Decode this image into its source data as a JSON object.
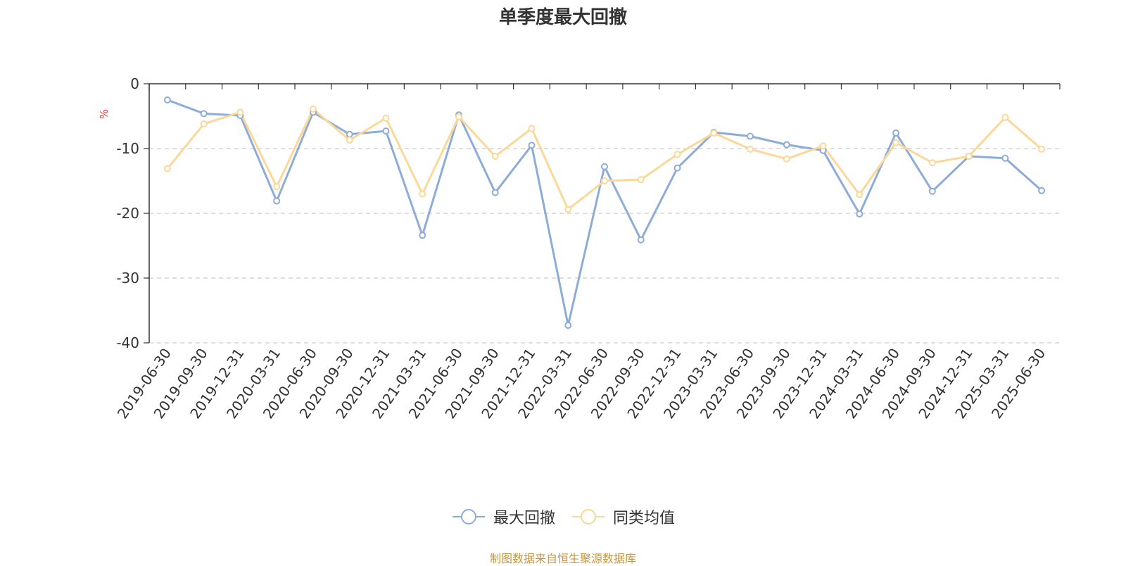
{
  "chart_data": {
    "type": "line",
    "title": "单季度最大回撤",
    "ylabel": "%",
    "ylim": [
      -40,
      0
    ],
    "yticks": [
      0,
      -10,
      -20,
      -30,
      -40
    ],
    "grid": true,
    "legend_position": "bottom",
    "categories": [
      "2019-06-30",
      "2019-09-30",
      "2019-12-31",
      "2020-03-31",
      "2020-06-30",
      "2020-09-30",
      "2020-12-31",
      "2021-03-31",
      "2021-06-30",
      "2021-09-30",
      "2021-12-31",
      "2022-03-31",
      "2022-06-30",
      "2022-09-30",
      "2022-12-31",
      "2023-03-31",
      "2023-06-30",
      "2023-09-30",
      "2023-12-31",
      "2024-03-31",
      "2024-06-30",
      "2024-09-30",
      "2024-12-31",
      "2025-03-31",
      "2025-06-30"
    ],
    "series": [
      {
        "name": "最大回撤",
        "color": "#8eacd8",
        "values": [
          -2.5,
          -4.6,
          -4.9,
          -18.1,
          -4.4,
          -7.8,
          -7.3,
          -23.4,
          -4.8,
          -16.8,
          -9.5,
          -37.3,
          -12.8,
          -24.1,
          -13.0,
          -7.5,
          -8.1,
          -9.4,
          -10.3,
          -20.1,
          -7.6,
          -16.6,
          -11.2,
          -11.5,
          -16.5
        ]
      },
      {
        "name": "同类均值",
        "color": "#fbd898",
        "values": [
          -13.1,
          -6.2,
          -4.4,
          -15.9,
          -3.9,
          -8.7,
          -5.3,
          -17.0,
          -5.1,
          -11.2,
          -6.9,
          -19.4,
          -15.0,
          -14.8,
          -10.9,
          -7.6,
          -10.1,
          -11.6,
          -9.6,
          -17.1,
          -9.1,
          -12.2,
          -11.2,
          -5.2,
          -10.1
        ]
      }
    ]
  },
  "source_note": "制图数据来自恒生聚源数据库"
}
